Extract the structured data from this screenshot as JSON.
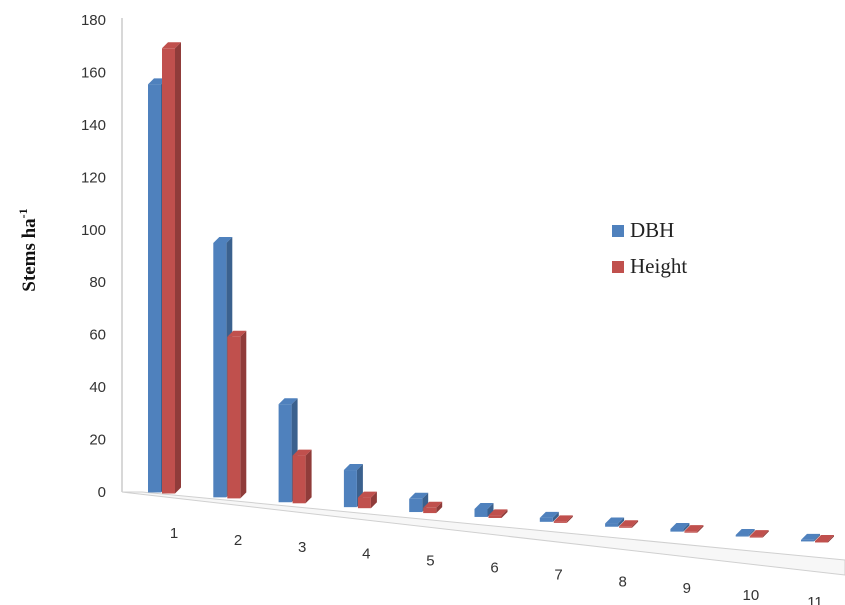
{
  "chart_data": {
    "type": "bar",
    "title": "",
    "xlabel": "",
    "ylabel": "Stems ha",
    "ylabel_superscript": "-1",
    "ylim": [
      0,
      180
    ],
    "yticks": [
      0,
      20,
      40,
      60,
      80,
      100,
      120,
      140,
      160,
      180
    ],
    "categories": [
      "1",
      "2",
      "3",
      "4",
      "5",
      "6",
      "7",
      "8",
      "9",
      "10",
      "11"
    ],
    "series": [
      {
        "name": "DBH",
        "color": "#4f81bd",
        "values": [
          154,
          96,
          37,
          14,
          5,
          3,
          1.5,
          1.2,
          1,
          0.5,
          0.3
        ]
      },
      {
        "name": "Height",
        "color": "#c0504d",
        "values": [
          168,
          61,
          18,
          4,
          2,
          1,
          0.5,
          0.4,
          0.3,
          0.2,
          0.1
        ]
      }
    ],
    "legend_position": "right",
    "grid": false
  }
}
